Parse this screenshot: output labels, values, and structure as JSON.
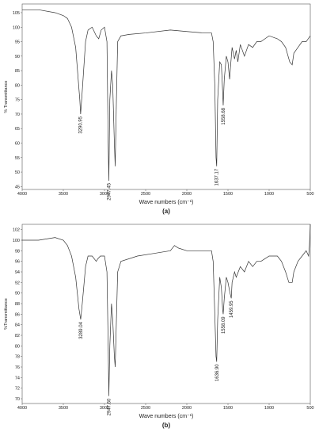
{
  "chart_data": [
    {
      "type": "line",
      "caption": "(a)",
      "xlabel": "Wave numbers (cm⁻¹)",
      "ylabel": "% Transmittance",
      "color": "#333333",
      "xlim": [
        4000,
        500
      ],
      "ylim": [
        44,
        108
      ],
      "xticks": [
        4000,
        3500,
        3000,
        2500,
        2000,
        1500,
        1000,
        500
      ],
      "yticks": [
        45,
        50,
        55,
        60,
        65,
        70,
        75,
        80,
        85,
        90,
        95,
        100,
        105
      ],
      "x": [
        4000,
        3800,
        3600,
        3500,
        3450,
        3400,
        3350,
        3300,
        3290,
        3270,
        3230,
        3200,
        3150,
        3100,
        3070,
        3040,
        3000,
        2970,
        2955,
        2947,
        2935,
        2915,
        2900,
        2880,
        2870,
        2855,
        2840,
        2800,
        2700,
        2500,
        2200,
        2000,
        1800,
        1700,
        1680,
        1660,
        1645,
        1637,
        1625,
        1600,
        1580,
        1565,
        1558,
        1545,
        1520,
        1500,
        1480,
        1470,
        1450,
        1420,
        1400,
        1380,
        1350,
        1300,
        1250,
        1200,
        1150,
        1100,
        1050,
        1000,
        900,
        850,
        800,
        750,
        720,
        700,
        650,
        600,
        550,
        500
      ],
      "values": [
        106,
        106,
        105,
        104,
        103,
        100,
        93,
        75,
        70,
        78,
        95,
        99,
        100,
        97,
        96,
        99,
        100,
        95,
        60,
        47,
        75,
        85,
        80,
        60,
        52,
        75,
        95,
        97,
        97.5,
        98,
        99,
        98.5,
        98,
        98,
        95,
        80,
        55,
        52,
        75,
        88,
        87,
        78,
        73,
        82,
        90,
        88,
        82,
        86,
        93,
        89,
        92,
        88,
        94,
        90,
        94,
        93,
        95,
        95,
        96,
        97,
        96,
        95,
        93,
        88,
        87,
        91,
        93,
        95,
        95,
        97
      ],
      "annotations": [
        {
          "text": "3290.95",
          "x": 3290.95
        },
        {
          "text": "2947.45",
          "x": 2947.45
        },
        {
          "text": "1637.17",
          "x": 1637.17
        },
        {
          "text": "1558.68",
          "x": 1558.68
        }
      ]
    },
    {
      "type": "line",
      "caption": "(b)",
      "xlabel": "Wave numbers (cm⁻¹)",
      "ylabel": "%Transmittance",
      "color": "#333333",
      "xlim": [
        4000,
        500
      ],
      "ylim": [
        69.1,
        103
      ],
      "xticks": [
        4000,
        3500,
        3000,
        2500,
        2000,
        1500,
        1000,
        500
      ],
      "yticks": [
        70,
        72,
        74,
        76,
        78,
        80,
        82,
        84,
        86,
        88,
        90,
        92,
        94,
        96,
        98,
        100,
        102
      ],
      "x": [
        4000,
        3800,
        3600,
        3500,
        3450,
        3400,
        3350,
        3310,
        3289,
        3270,
        3230,
        3200,
        3150,
        3100,
        3080,
        3050,
        3000,
        2970,
        2955,
        2947,
        2935,
        2915,
        2900,
        2880,
        2870,
        2855,
        2840,
        2800,
        2600,
        2400,
        2200,
        2150,
        2100,
        2000,
        1800,
        1700,
        1680,
        1660,
        1645,
        1637,
        1625,
        1600,
        1580,
        1565,
        1558,
        1545,
        1520,
        1500,
        1475,
        1460,
        1450,
        1420,
        1400,
        1350,
        1300,
        1250,
        1200,
        1150,
        1100,
        1050,
        1000,
        900,
        850,
        800,
        760,
        720,
        700,
        650,
        600,
        550,
        520,
        510,
        500
      ],
      "values": [
        100,
        100,
        100.5,
        100,
        99,
        97,
        93,
        87,
        85,
        88,
        95,
        97,
        97,
        96,
        96.5,
        97,
        97,
        94,
        80,
        70.5,
        80,
        88,
        85,
        78,
        76,
        85,
        94,
        96,
        97,
        97.5,
        98,
        99,
        98.5,
        98,
        98,
        98,
        96,
        86,
        78,
        77,
        85,
        93,
        91,
        87,
        86,
        89,
        93,
        92,
        90,
        89,
        92,
        94,
        93,
        95,
        94,
        96,
        95,
        96,
        96,
        96.5,
        97,
        97,
        96,
        94,
        92,
        92,
        94,
        96,
        97,
        98,
        97,
        99,
        103
      ],
      "annotations": [
        {
          "text": "3289.04",
          "x": 3289.04
        },
        {
          "text": "2947.60",
          "x": 2947.6
        },
        {
          "text": "1636.90",
          "x": 1636.9
        },
        {
          "text": "1558.09",
          "x": 1558.09
        },
        {
          "text": "1459.95",
          "x": 1459.95
        }
      ]
    }
  ]
}
